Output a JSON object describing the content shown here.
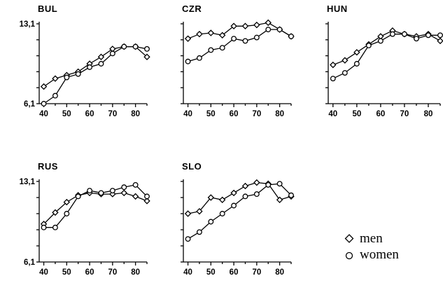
{
  "chart_data": [
    {
      "type": "line",
      "title": "BUL",
      "xlim": [
        38,
        85
      ],
      "ylim": [
        6.1,
        13.1
      ],
      "xticks": [
        "40",
        "50",
        "60",
        "70",
        "80"
      ],
      "yticks": [
        "13,1",
        "6,1"
      ],
      "series": [
        {
          "name": "men",
          "x": [
            40,
            45,
            50,
            55,
            60,
            65,
            70,
            75,
            80,
            85
          ],
          "values": [
            7.6,
            8.3,
            8.6,
            8.9,
            9.6,
            10.2,
            10.9,
            11.1,
            11.1,
            10.2
          ]
        },
        {
          "name": "women",
          "x": [
            40,
            45,
            50,
            55,
            60,
            65,
            70,
            75,
            80,
            85
          ],
          "values": [
            6.1,
            6.8,
            8.4,
            8.7,
            9.3,
            9.6,
            10.5,
            11.1,
            11.1,
            10.9
          ]
        }
      ]
    },
    {
      "type": "line",
      "title": "CZR",
      "xlim": [
        38,
        85
      ],
      "ylim": [
        6.1,
        13.1
      ],
      "xticks": [
        "40",
        "50",
        "60",
        "70",
        "80"
      ],
      "yticks": [],
      "series": [
        {
          "name": "men",
          "x": [
            40,
            45,
            50,
            55,
            60,
            65,
            70,
            75,
            80,
            85
          ],
          "values": [
            11.8,
            12.2,
            12.3,
            12.1,
            12.9,
            12.9,
            13.0,
            13.2,
            12.6,
            12.0
          ]
        },
        {
          "name": "women",
          "x": [
            40,
            45,
            50,
            55,
            60,
            65,
            70,
            75,
            80,
            85
          ],
          "values": [
            9.8,
            10.1,
            10.8,
            11.0,
            11.8,
            11.6,
            11.9,
            12.6,
            12.6,
            12.0
          ]
        }
      ]
    },
    {
      "type": "line",
      "title": "HUN",
      "xlim": [
        38,
        85
      ],
      "ylim": [
        6.1,
        13.1
      ],
      "xticks": [
        "40",
        "50",
        "60",
        "70",
        "80"
      ],
      "yticks": [],
      "series": [
        {
          "name": "men",
          "x": [
            40,
            45,
            50,
            55,
            60,
            65,
            70,
            75,
            80,
            85
          ],
          "values": [
            9.5,
            9.9,
            10.6,
            11.3,
            12.0,
            12.5,
            12.2,
            12.0,
            12.2,
            11.6
          ]
        },
        {
          "name": "women",
          "x": [
            40,
            45,
            50,
            55,
            60,
            65,
            70,
            75,
            80,
            85
          ],
          "values": [
            8.3,
            8.8,
            9.6,
            11.2,
            11.6,
            12.2,
            12.2,
            11.8,
            12.1,
            12.1
          ]
        }
      ]
    },
    {
      "type": "line",
      "title": "RUS",
      "xlim": [
        38,
        85
      ],
      "ylim": [
        6.1,
        13.1
      ],
      "xticks": [
        "40",
        "50",
        "60",
        "70",
        "80"
      ],
      "yticks": [
        "13,1",
        "6,1"
      ],
      "series": [
        {
          "name": "men",
          "x": [
            40,
            45,
            50,
            55,
            60,
            65,
            70,
            75,
            80,
            85
          ],
          "values": [
            9.4,
            10.4,
            11.3,
            11.9,
            12.1,
            12.0,
            12.0,
            12.1,
            11.8,
            11.4
          ]
        },
        {
          "name": "women",
          "x": [
            40,
            45,
            50,
            55,
            60,
            65,
            70,
            75,
            80,
            85
          ],
          "values": [
            9.1,
            9.1,
            10.3,
            11.8,
            12.3,
            12.1,
            12.3,
            12.6,
            12.8,
            11.8
          ]
        }
      ]
    },
    {
      "type": "line",
      "title": "SLO",
      "xlim": [
        38,
        85
      ],
      "ylim": [
        6.1,
        13.1
      ],
      "xticks": [
        "40",
        "50",
        "60",
        "70",
        "80"
      ],
      "yticks": [],
      "series": [
        {
          "name": "men",
          "x": [
            40,
            45,
            50,
            55,
            60,
            65,
            70,
            75,
            80,
            85
          ],
          "values": [
            10.3,
            10.5,
            11.7,
            11.5,
            12.1,
            12.7,
            13.0,
            12.9,
            11.5,
            11.8
          ]
        },
        {
          "name": "women",
          "x": [
            40,
            45,
            50,
            55,
            60,
            65,
            70,
            75,
            80,
            85
          ],
          "values": [
            8.1,
            8.7,
            9.6,
            10.3,
            11.0,
            11.8,
            12.0,
            12.8,
            12.9,
            11.9
          ]
        }
      ]
    }
  ],
  "legend": {
    "items": [
      {
        "label": "men",
        "marker": "diamond"
      },
      {
        "label": "women",
        "marker": "circle"
      }
    ]
  }
}
